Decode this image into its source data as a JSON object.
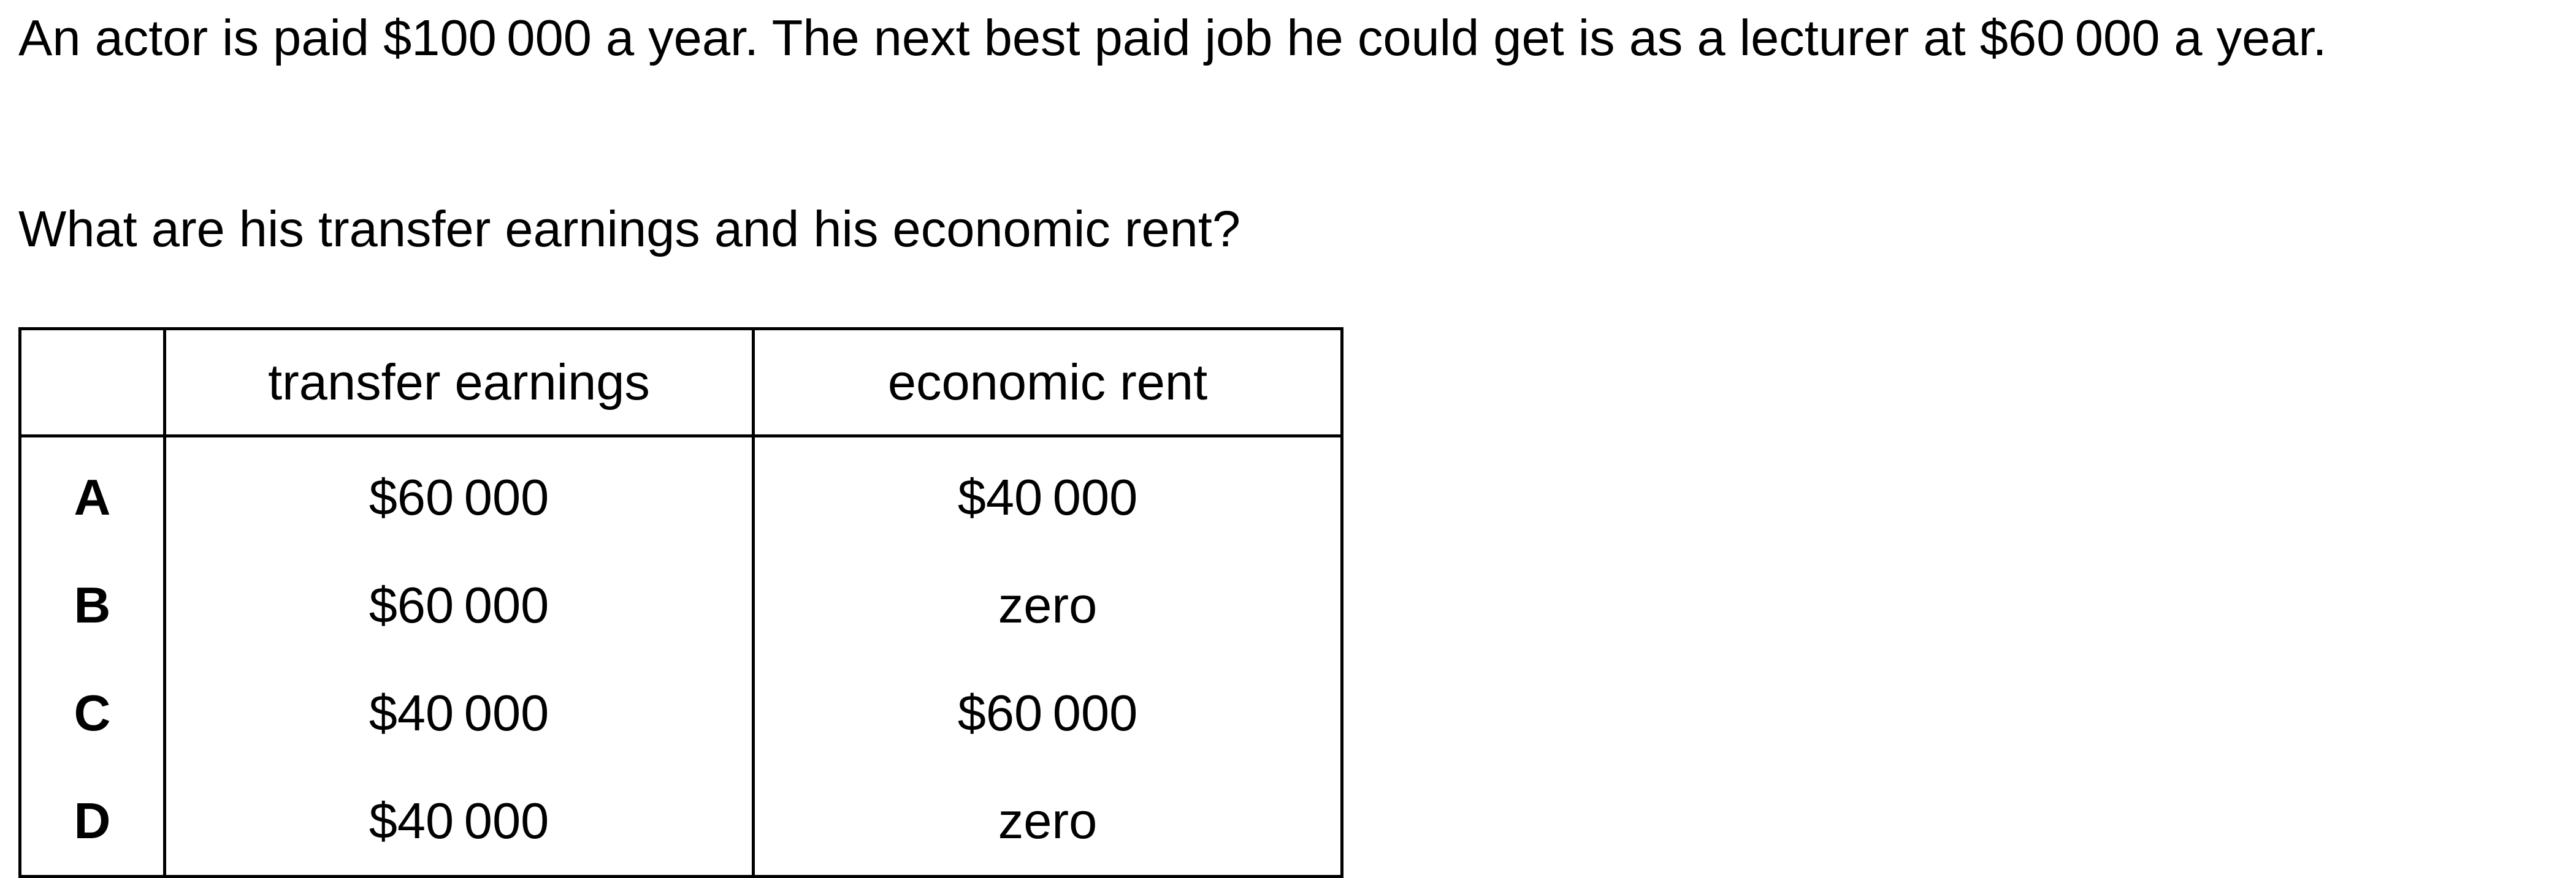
{
  "question": {
    "stem": "An actor is paid $100 000 a year. The next best paid job he could get is as a lecturer at $60 000 a year.",
    "prompt": "What are his transfer earnings and his economic rent?"
  },
  "table": {
    "headers": [
      "",
      "transfer earnings",
      "economic rent"
    ],
    "rows": [
      {
        "option": "A",
        "transfer_earnings": "$60 000",
        "economic_rent": "$40 000"
      },
      {
        "option": "B",
        "transfer_earnings": "$60 000",
        "economic_rent": "zero"
      },
      {
        "option": "C",
        "transfer_earnings": "$40 000",
        "economic_rent": "$60 000"
      },
      {
        "option": "D",
        "transfer_earnings": "$40 000",
        "economic_rent": "zero"
      }
    ]
  }
}
